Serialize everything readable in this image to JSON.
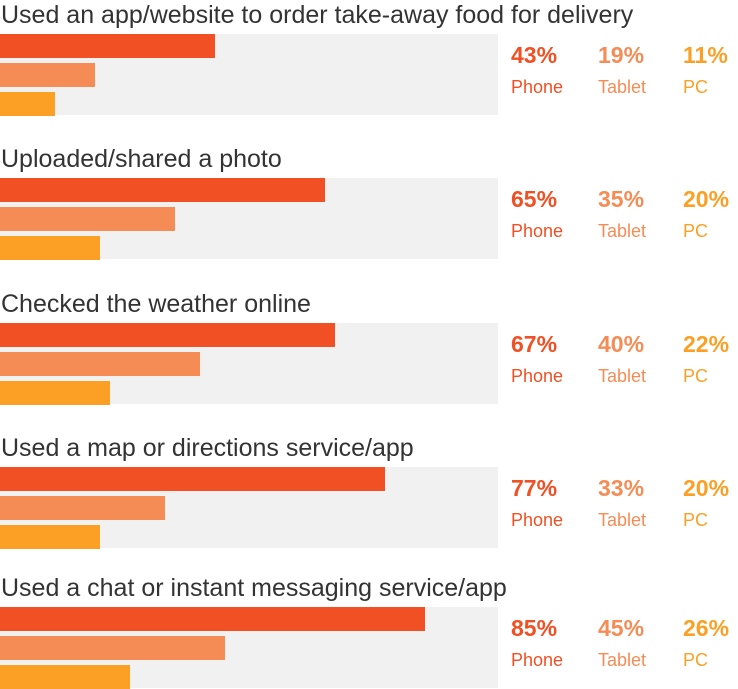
{
  "chart_data": {
    "type": "bar",
    "orientation": "horizontal",
    "xlim": [
      0,
      100
    ],
    "colors": {
      "Phone": "#f05023",
      "Tablet": "#f58c55",
      "PC": "#fba025"
    },
    "series_names": [
      "Phone",
      "Tablet",
      "PC"
    ],
    "categories": [
      "Used an app/website to order take-away food for delivery",
      "Uploaded/shared a photo",
      "Checked the weather online",
      "Used a map or directions service/app",
      "Used a chat or instant messaging service/app"
    ],
    "series": [
      {
        "name": "Phone",
        "values": [
          43,
          65,
          67,
          77,
          85
        ],
        "labels": [
          "43%",
          "65%",
          "67%",
          "77%",
          "85%"
        ]
      },
      {
        "name": "Tablet",
        "values": [
          19,
          35,
          40,
          33,
          45
        ],
        "labels": [
          "19%",
          "35%",
          "40%",
          "33%",
          "45%"
        ]
      },
      {
        "name": "PC",
        "values": [
          11,
          20,
          22,
          20,
          26
        ],
        "labels": [
          "11%",
          "20%",
          "22%",
          "20%",
          "26%"
        ]
      }
    ]
  }
}
